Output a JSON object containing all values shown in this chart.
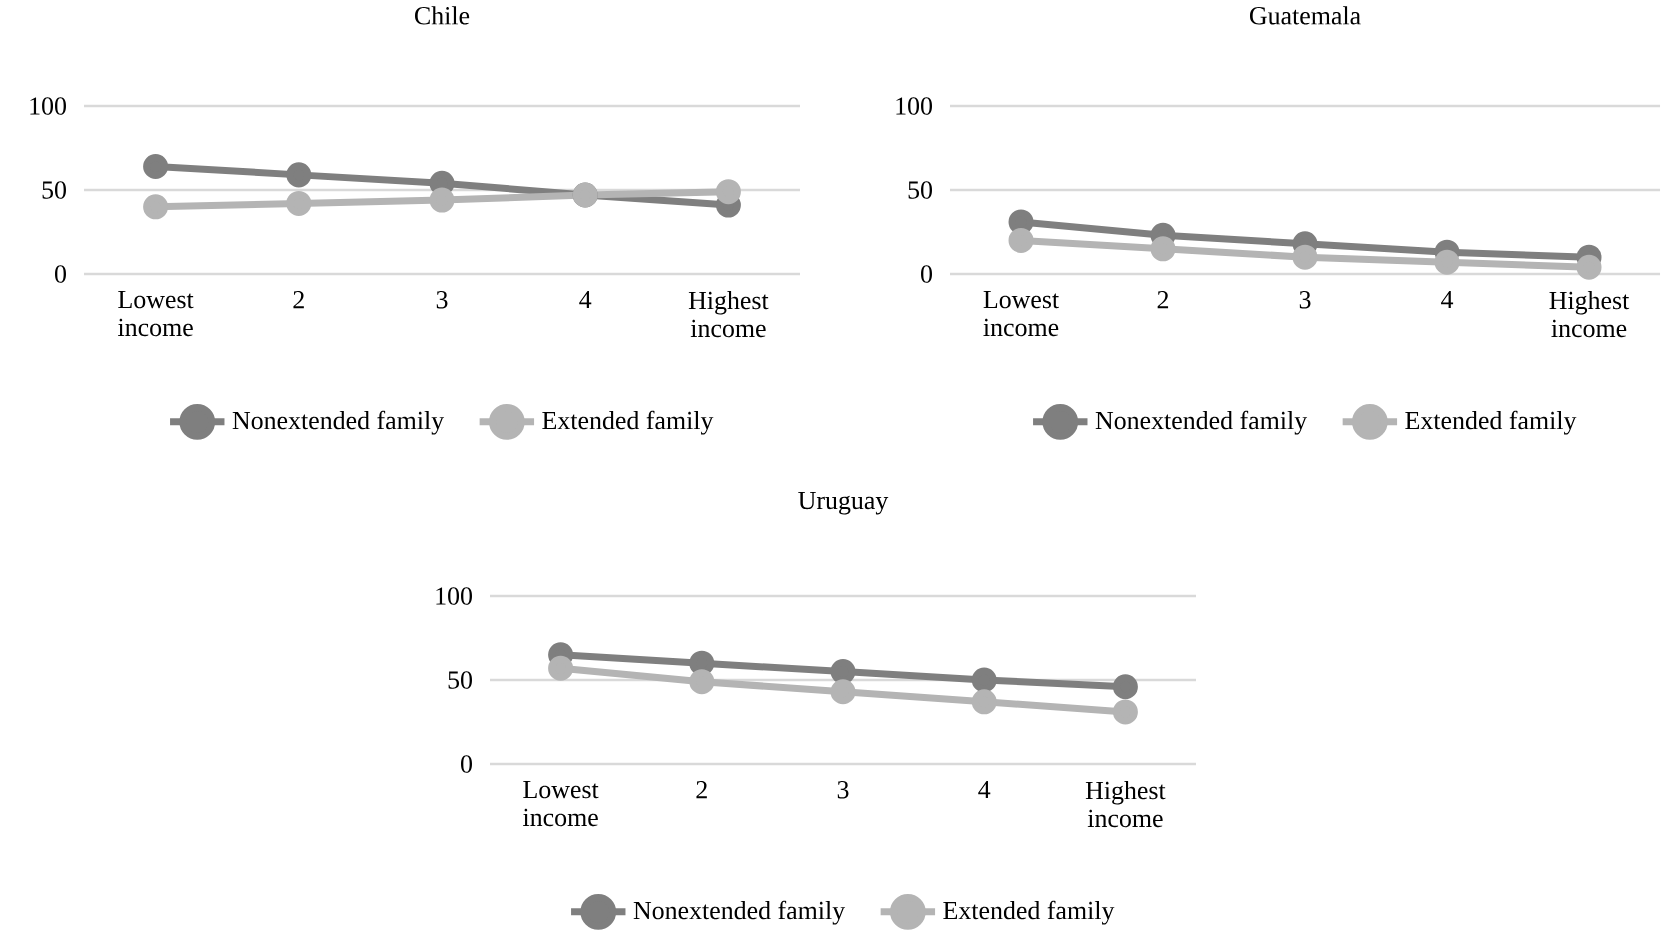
{
  "chart_data": [
    {
      "type": "line",
      "title": "Chile",
      "categories": [
        "Lowest income",
        "2",
        "3",
        "4",
        "Highest income"
      ],
      "ylim": [
        0,
        100
      ],
      "yticks": [
        0,
        50,
        100
      ],
      "grid": "y",
      "legend": "bottom",
      "marker": "circle",
      "series": [
        {
          "name": "Nonextended family",
          "color": "#7f7f7f",
          "values": [
            64,
            59,
            54,
            47,
            41
          ]
        },
        {
          "name": "Extended family",
          "color": "#b4b4b4",
          "values": [
            40,
            42,
            44,
            47,
            49
          ]
        }
      ]
    },
    {
      "type": "line",
      "title": "Guatemala",
      "categories": [
        "Lowest income",
        "2",
        "3",
        "4",
        "Highest income"
      ],
      "ylim": [
        0,
        100
      ],
      "yticks": [
        0,
        50,
        100
      ],
      "grid": "y",
      "legend": "bottom",
      "marker": "circle",
      "series": [
        {
          "name": "Nonextended family",
          "color": "#7f7f7f",
          "values": [
            31,
            23,
            18,
            13,
            10
          ]
        },
        {
          "name": "Extended family",
          "color": "#b4b4b4",
          "values": [
            20,
            15,
            10,
            7,
            4
          ]
        }
      ]
    },
    {
      "type": "line",
      "title": "Uruguay",
      "categories": [
        "Lowest income",
        "2",
        "3",
        "4",
        "Highest income"
      ],
      "ylim": [
        0,
        100
      ],
      "yticks": [
        0,
        50,
        100
      ],
      "grid": "y",
      "legend": "bottom",
      "marker": "circle",
      "series": [
        {
          "name": "Nonextended family",
          "color": "#7f7f7f",
          "values": [
            65,
            60,
            55,
            50,
            46
          ]
        },
        {
          "name": "Extended family",
          "color": "#b4b4b4",
          "values": [
            57,
            49,
            43,
            37,
            31
          ]
        }
      ]
    }
  ]
}
